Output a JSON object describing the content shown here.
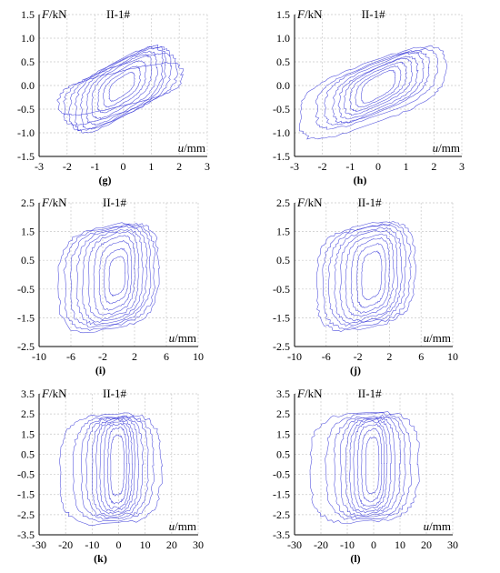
{
  "colors": {
    "curve": "#2b2bd6",
    "grid": "#c8c8c8",
    "axis": "#000000"
  },
  "chart_data": [
    {
      "id": "g",
      "type": "line",
      "caption": "(g)",
      "specimen": "II-1#",
      "ylabel": "F/kN",
      "xlabel": "u/mm",
      "xlim": [
        -3,
        3
      ],
      "xticks": [
        -3,
        -2,
        -1,
        0,
        1,
        2,
        3
      ],
      "ylim": [
        -1.5,
        1.5
      ],
      "yticks": [
        -1.5,
        -1.0,
        -0.5,
        0.0,
        0.5,
        1.0,
        1.5
      ],
      "ytick_labels": [
        "-1.5",
        "-1.0",
        "-0.5",
        "0.0",
        "0.5",
        "1.0",
        "1.5"
      ],
      "loops": [
        {
          "x": [
            -2.3,
            2.1
          ],
          "y": [
            -0.75,
            0.6
          ]
        },
        {
          "x": [
            -2.1,
            1.9
          ],
          "y": [
            -1.0,
            0.85
          ]
        },
        {
          "x": [
            -1.9,
            1.7
          ],
          "y": [
            -1.15,
            1.0
          ]
        },
        {
          "x": [
            -1.7,
            1.5
          ],
          "y": [
            -1.2,
            1.05
          ]
        },
        {
          "x": [
            -1.5,
            1.4
          ],
          "y": [
            -1.1,
            1.0
          ]
        },
        {
          "x": [
            -1.3,
            1.2
          ],
          "y": [
            -1.0,
            0.9
          ]
        },
        {
          "x": [
            -1.1,
            1.0
          ],
          "y": [
            -0.85,
            0.8
          ]
        },
        {
          "x": [
            -0.9,
            0.8
          ],
          "y": [
            -0.7,
            0.65
          ]
        },
        {
          "x": [
            -0.7,
            0.6
          ],
          "y": [
            -0.55,
            0.5
          ]
        },
        {
          "x": [
            -0.5,
            0.4
          ],
          "y": [
            -0.4,
            0.35
          ]
        }
      ]
    },
    {
      "id": "h",
      "type": "line",
      "caption": "(h)",
      "specimen": "II-1#",
      "ylabel": "F/kN",
      "xlabel": "u/mm",
      "xlim": [
        -3,
        3
      ],
      "xticks": [
        -3,
        -2,
        -1,
        0,
        1,
        2,
        3
      ],
      "ylim": [
        -1.5,
        1.5
      ],
      "yticks": [
        -1.5,
        -1.0,
        -0.5,
        0.0,
        0.5,
        1.0,
        1.5
      ],
      "ytick_labels": [
        "-1.5",
        "-1.0",
        "-0.5",
        "0.0",
        "0.5",
        "1.0",
        "1.5"
      ],
      "loops": [
        {
          "x": [
            -2.8,
            2.4
          ],
          "y": [
            -1.35,
            1.05
          ]
        },
        {
          "x": [
            -2.2,
            2.1
          ],
          "y": [
            -1.1,
            0.95
          ]
        },
        {
          "x": [
            -1.9,
            1.8
          ],
          "y": [
            -1.0,
            0.9
          ]
        },
        {
          "x": [
            -1.6,
            1.6
          ],
          "y": [
            -0.95,
            0.85
          ]
        },
        {
          "x": [
            -1.4,
            1.4
          ],
          "y": [
            -0.85,
            0.75
          ]
        },
        {
          "x": [
            -1.2,
            1.2
          ],
          "y": [
            -0.75,
            0.7
          ]
        },
        {
          "x": [
            -1.0,
            1.0
          ],
          "y": [
            -0.65,
            0.6
          ]
        },
        {
          "x": [
            -0.8,
            0.8
          ],
          "y": [
            -0.55,
            0.5
          ]
        },
        {
          "x": [
            -0.6,
            0.6
          ],
          "y": [
            -0.45,
            0.4
          ]
        }
      ]
    },
    {
      "id": "i",
      "type": "line",
      "caption": "(i)",
      "specimen": "II-1#",
      "ylabel": "F/kN",
      "xlabel": "u/mm",
      "xlim": [
        -10,
        10
      ],
      "xticks": [
        -10,
        -6,
        -2,
        2,
        6,
        10
      ],
      "ylim": [
        -2.5,
        2.5
      ],
      "yticks": [
        -2.5,
        -1.5,
        -0.5,
        0.5,
        1.5,
        2.5
      ],
      "ytick_labels": [
        "-2.5",
        "-1.5",
        "-0.5",
        "0.5",
        "1.5",
        "2.5"
      ],
      "loops": [
        {
          "x": [
            -7.5,
            5.0
          ],
          "y": [
            -2.2,
            2.0
          ]
        },
        {
          "x": [
            -6.8,
            4.5
          ],
          "y": [
            -2.1,
            1.95
          ]
        },
        {
          "x": [
            -6.0,
            4.0
          ],
          "y": [
            -2.0,
            1.9
          ]
        },
        {
          "x": [
            -5.2,
            3.5
          ],
          "y": [
            -1.9,
            1.85
          ]
        },
        {
          "x": [
            -4.5,
            3.0
          ],
          "y": [
            -1.8,
            1.75
          ]
        },
        {
          "x": [
            -3.8,
            2.5
          ],
          "y": [
            -1.7,
            1.65
          ]
        },
        {
          "x": [
            -3.1,
            2.0
          ],
          "y": [
            -1.55,
            1.5
          ]
        },
        {
          "x": [
            -2.4,
            1.6
          ],
          "y": [
            -1.35,
            1.3
          ]
        },
        {
          "x": [
            -1.8,
            1.2
          ],
          "y": [
            -1.1,
            1.0
          ]
        },
        {
          "x": [
            -1.2,
            0.8
          ],
          "y": [
            -0.8,
            0.7
          ]
        }
      ]
    },
    {
      "id": "j",
      "type": "line",
      "caption": "(j)",
      "specimen": "II-1#",
      "ylabel": "F/kN",
      "xlabel": "u/mm",
      "xlim": [
        -10,
        10
      ],
      "xticks": [
        -10,
        -6,
        -2,
        2,
        6,
        10
      ],
      "ylim": [
        -2.5,
        2.5
      ],
      "yticks": [
        -2.5,
        -1.5,
        -0.5,
        0.5,
        1.5,
        2.5
      ],
      "ytick_labels": [
        "-2.5",
        "-1.5",
        "-0.5",
        "0.5",
        "1.5",
        "2.5"
      ],
      "loops": [
        {
          "x": [
            -7.2,
            5.2
          ],
          "y": [
            -2.15,
            2.05
          ]
        },
        {
          "x": [
            -6.4,
            4.6
          ],
          "y": [
            -2.05,
            1.95
          ]
        },
        {
          "x": [
            -5.6,
            4.0
          ],
          "y": [
            -1.95,
            1.9
          ]
        },
        {
          "x": [
            -4.9,
            3.5
          ],
          "y": [
            -1.85,
            1.8
          ]
        },
        {
          "x": [
            -4.2,
            3.0
          ],
          "y": [
            -1.75,
            1.7
          ]
        },
        {
          "x": [
            -3.5,
            2.5
          ],
          "y": [
            -1.6,
            1.55
          ]
        },
        {
          "x": [
            -2.8,
            2.0
          ],
          "y": [
            -1.45,
            1.4
          ]
        },
        {
          "x": [
            -2.1,
            1.5
          ],
          "y": [
            -1.25,
            1.2
          ]
        },
        {
          "x": [
            -1.5,
            1.0
          ],
          "y": [
            -0.95,
            0.9
          ]
        }
      ]
    },
    {
      "id": "k",
      "type": "line",
      "caption": "(k)",
      "specimen": "II-1#",
      "ylabel": "F/kN",
      "xlabel": "u/mm",
      "xlim": [
        -30,
        30
      ],
      "xticks": [
        -30,
        -20,
        -10,
        0,
        10,
        20,
        30
      ],
      "ylim": [
        -3.5,
        3.5
      ],
      "yticks": [
        -3.5,
        -2.5,
        -1.5,
        -0.5,
        0.5,
        1.5,
        2.5,
        3.5
      ],
      "ytick_labels": [
        "-3.5",
        "-2.5",
        "-1.5",
        "-0.5",
        "0.5",
        "1.5",
        "2.5",
        "3.5"
      ],
      "loops": [
        {
          "x": [
            -22,
            16
          ],
          "y": [
            -3.1,
            2.6
          ]
        },
        {
          "x": [
            -17,
            13
          ],
          "y": [
            -2.9,
            2.5
          ]
        },
        {
          "x": [
            -14,
            11
          ],
          "y": [
            -2.8,
            2.45
          ]
        },
        {
          "x": [
            -12,
            9
          ],
          "y": [
            -2.7,
            2.4
          ]
        },
        {
          "x": [
            -10,
            7.5
          ],
          "y": [
            -2.6,
            2.35
          ]
        },
        {
          "x": [
            -8.5,
            6
          ],
          "y": [
            -2.5,
            2.3
          ]
        },
        {
          "x": [
            -7,
            5
          ],
          "y": [
            -2.4,
            2.2
          ]
        },
        {
          "x": [
            -5.5,
            4
          ],
          "y": [
            -2.25,
            2.1
          ]
        },
        {
          "x": [
            -4,
            3
          ],
          "y": [
            -2.0,
            1.9
          ]
        },
        {
          "x": [
            -3,
            2
          ],
          "y": [
            -1.6,
            1.5
          ]
        }
      ]
    },
    {
      "id": "l",
      "type": "line",
      "caption": "(l)",
      "specimen": "II-1#",
      "ylabel": "F/kN",
      "xlabel": "u/mm",
      "xlim": [
        -30,
        30
      ],
      "xticks": [
        -30,
        -20,
        -10,
        0,
        10,
        20,
        30
      ],
      "ylim": [
        -3.5,
        3.5
      ],
      "yticks": [
        -3.5,
        -2.5,
        -1.5,
        -0.5,
        0.5,
        1.5,
        2.5,
        3.5
      ],
      "ytick_labels": [
        "-3.5",
        "-2.5",
        "-1.5",
        "-0.5",
        "0.5",
        "1.5",
        "2.5",
        "3.5"
      ],
      "loops": [
        {
          "x": [
            -24,
            17
          ],
          "y": [
            -3.0,
            2.7
          ]
        },
        {
          "x": [
            -18,
            14
          ],
          "y": [
            -2.85,
            2.6
          ]
        },
        {
          "x": [
            -15,
            12
          ],
          "y": [
            -2.75,
            2.5
          ]
        },
        {
          "x": [
            -12.5,
            10
          ],
          "y": [
            -2.65,
            2.45
          ]
        },
        {
          "x": [
            -10.5,
            8
          ],
          "y": [
            -2.55,
            2.4
          ]
        },
        {
          "x": [
            -9,
            6.5
          ],
          "y": [
            -2.45,
            2.3
          ]
        },
        {
          "x": [
            -7.5,
            5
          ],
          "y": [
            -2.3,
            2.2
          ]
        },
        {
          "x": [
            -6,
            4
          ],
          "y": [
            -2.15,
            2.05
          ]
        },
        {
          "x": [
            -4.5,
            3
          ],
          "y": [
            -1.9,
            1.8
          ]
        },
        {
          "x": [
            -3,
            2
          ],
          "y": [
            -1.5,
            1.4
          ]
        }
      ]
    }
  ]
}
